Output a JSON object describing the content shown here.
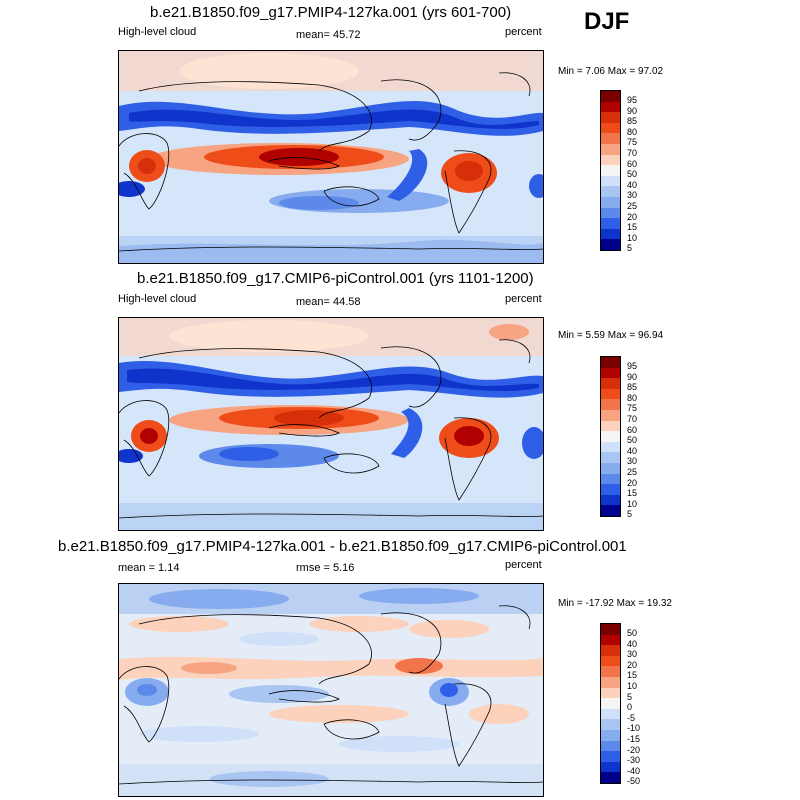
{
  "season": "DJF",
  "panels": [
    {
      "title": "b.e21.B1850.f09_g17.PMIP4-127ka.001 (yrs 601-700)",
      "left": "High-level cloud",
      "center": "mean=  45.72",
      "right": "percent",
      "minmax": "Min =  7.06 Max =  97.02",
      "levels": [
        "95",
        "90",
        "85",
        "80",
        "75",
        "70",
        "60",
        "50",
        "40",
        "30",
        "25",
        "20",
        "15",
        "10",
        "5"
      ]
    },
    {
      "title": "b.e21.B1850.f09_g17.CMIP6-piControl.001 (yrs 1101-1200)",
      "left": "High-level cloud",
      "center": "mean=  44.58",
      "right": "percent",
      "minmax": "Min =  5.59 Max =  96.94",
      "levels": [
        "95",
        "90",
        "85",
        "80",
        "75",
        "70",
        "60",
        "50",
        "40",
        "30",
        "25",
        "20",
        "15",
        "10",
        "5"
      ]
    },
    {
      "title": "b.e21.B1850.f09_g17.PMIP4-127ka.001 - b.e21.B1850.f09_g17.CMIP6-piControl.001",
      "left": "mean =   1.14",
      "center": "rmse =   5.16",
      "right": "percent",
      "minmax": "Min = -17.92 Max =  19.32",
      "levels": [
        "50",
        "40",
        "30",
        "20",
        "15",
        "10",
        "5",
        "0",
        "-5",
        "-10",
        "-15",
        "-20",
        "-30",
        "-40",
        "-50"
      ]
    }
  ],
  "colors": {
    "palette": [
      "#7a0000",
      "#b00000",
      "#d62f0a",
      "#ee4d1a",
      "#f2744a",
      "#f7a482",
      "#fcd2bd",
      "#f5f5f5",
      "#cfe0f8",
      "#a9c6f2",
      "#86abee",
      "#5c89ea",
      "#2f5fe6",
      "#0f34cc",
      "#00008a"
    ]
  }
}
